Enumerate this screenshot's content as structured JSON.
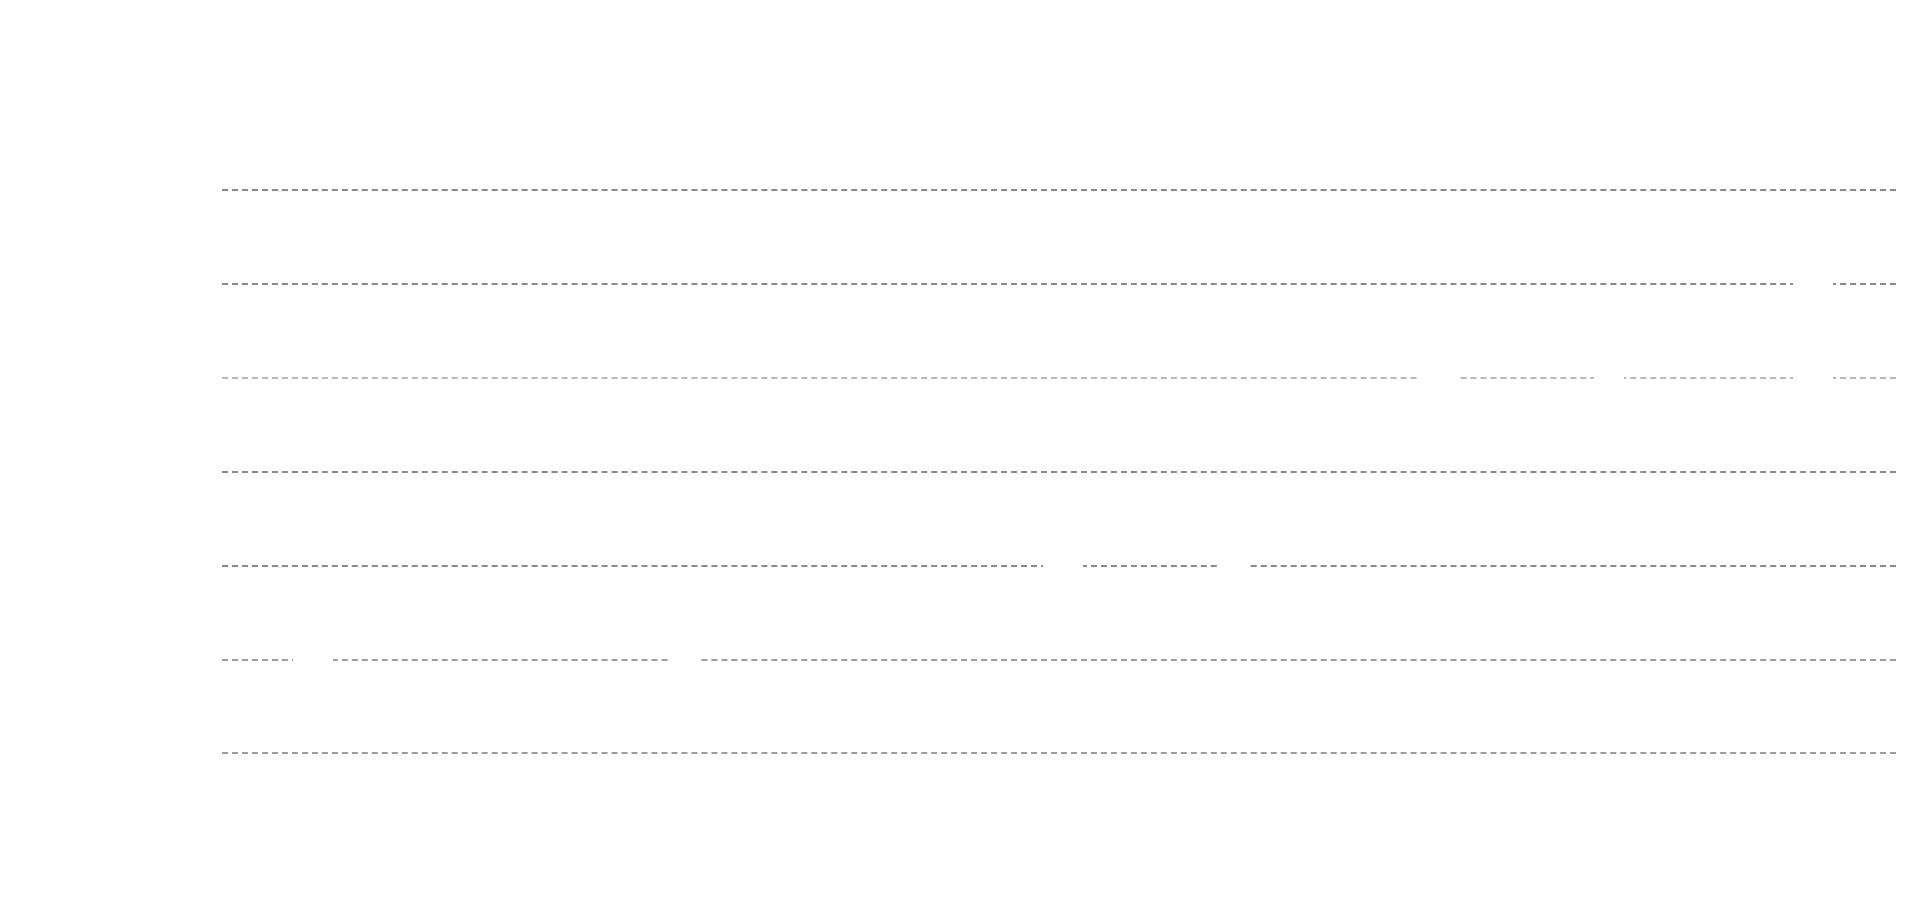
{
  "window": {
    "title": "",
    "background": "#ffffff"
  },
  "lines": [
    {
      "name": "line-1",
      "style": "solid-dash"
    },
    {
      "name": "line-2",
      "style": "solid-dash"
    },
    {
      "name": "line-3",
      "style": "faint-dash"
    },
    {
      "name": "line-4",
      "style": "solid-dash"
    },
    {
      "name": "line-5",
      "style": "solid-dash"
    },
    {
      "name": "line-6",
      "style": "soft-dash"
    },
    {
      "name": "line-7",
      "style": "soft-dash"
    }
  ],
  "colors": {
    "dash": "#8a8a8a",
    "dash_faint": "#b9b9b9",
    "dash_soft": "#9d9d9d"
  }
}
